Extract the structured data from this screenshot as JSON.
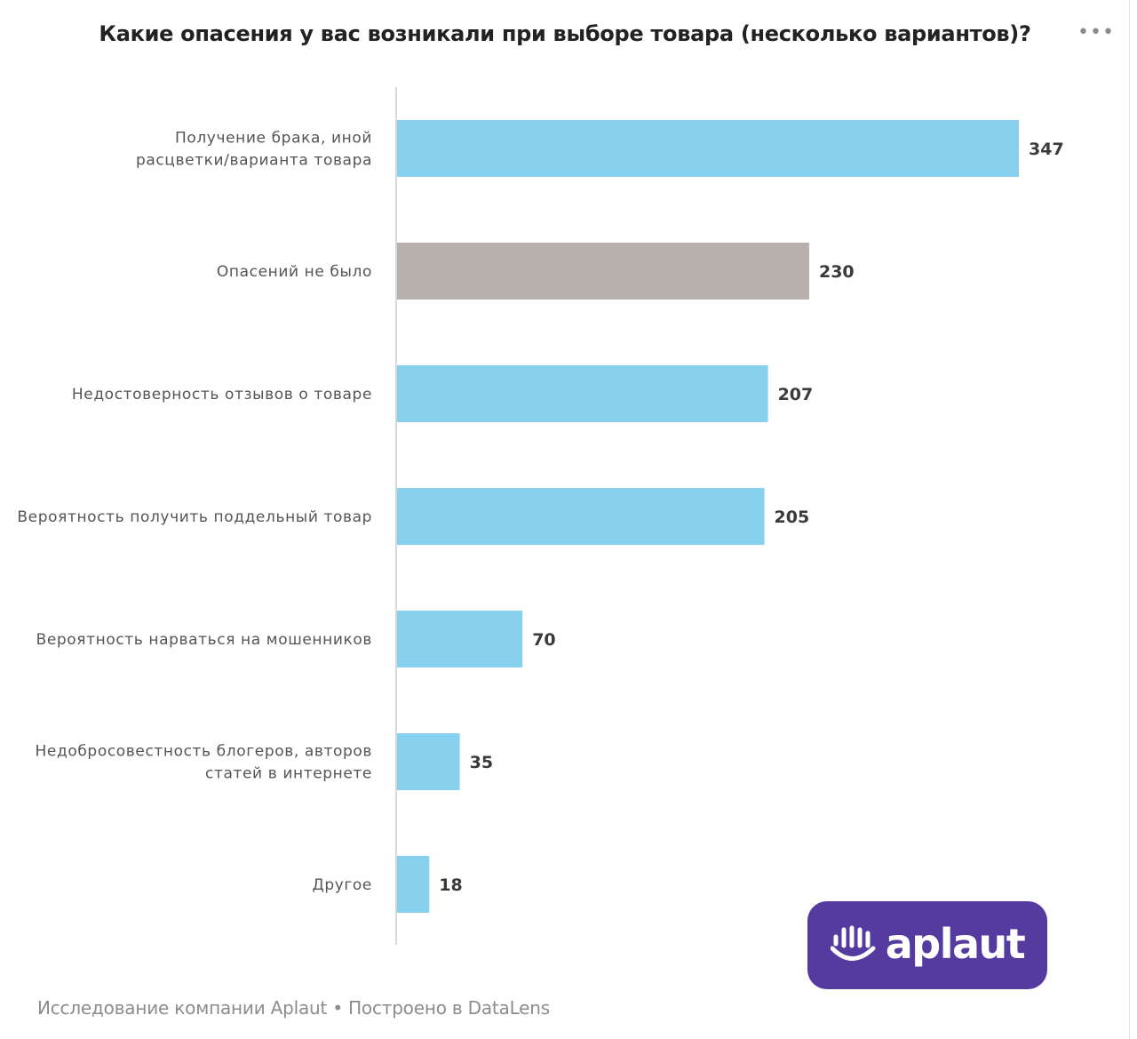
{
  "title": "Какие опасения у вас возникали при выборе товара (несколько вариантов)?",
  "menu_label": "•••",
  "footer": {
    "text": "Исследование компании Aplaut • Построено в DataLens"
  },
  "logo": {
    "text": "aplaut"
  },
  "chart_data": {
    "type": "bar",
    "orientation": "horizontal",
    "title": "Какие опасения у вас возникали при выборе товара (несколько вариантов)?",
    "categories": [
      [
        "Получение брака, иной",
        "расцветки/варианта товара"
      ],
      [
        "Опасений не было"
      ],
      [
        "Недостоверность отзывов о товаре"
      ],
      [
        "Вероятность получить поддельный товар"
      ],
      [
        "Вероятность нарваться на мошенников"
      ],
      [
        "Недобросовестность блогеров, авторов",
        "статей в интернете"
      ],
      [
        "Другое"
      ]
    ],
    "values": [
      347,
      230,
      207,
      205,
      70,
      35,
      18
    ],
    "value_labels": [
      "347",
      "230",
      "207",
      "205",
      "70",
      "35",
      "18"
    ],
    "bar_colors": [
      "#87d0ee",
      "#b8b0ac",
      "#87d0ee",
      "#87d0ee",
      "#87d0ee",
      "#87d0ee",
      "#87d0ee"
    ],
    "xlim": [
      0,
      350
    ],
    "grid": false,
    "legend": "none"
  }
}
